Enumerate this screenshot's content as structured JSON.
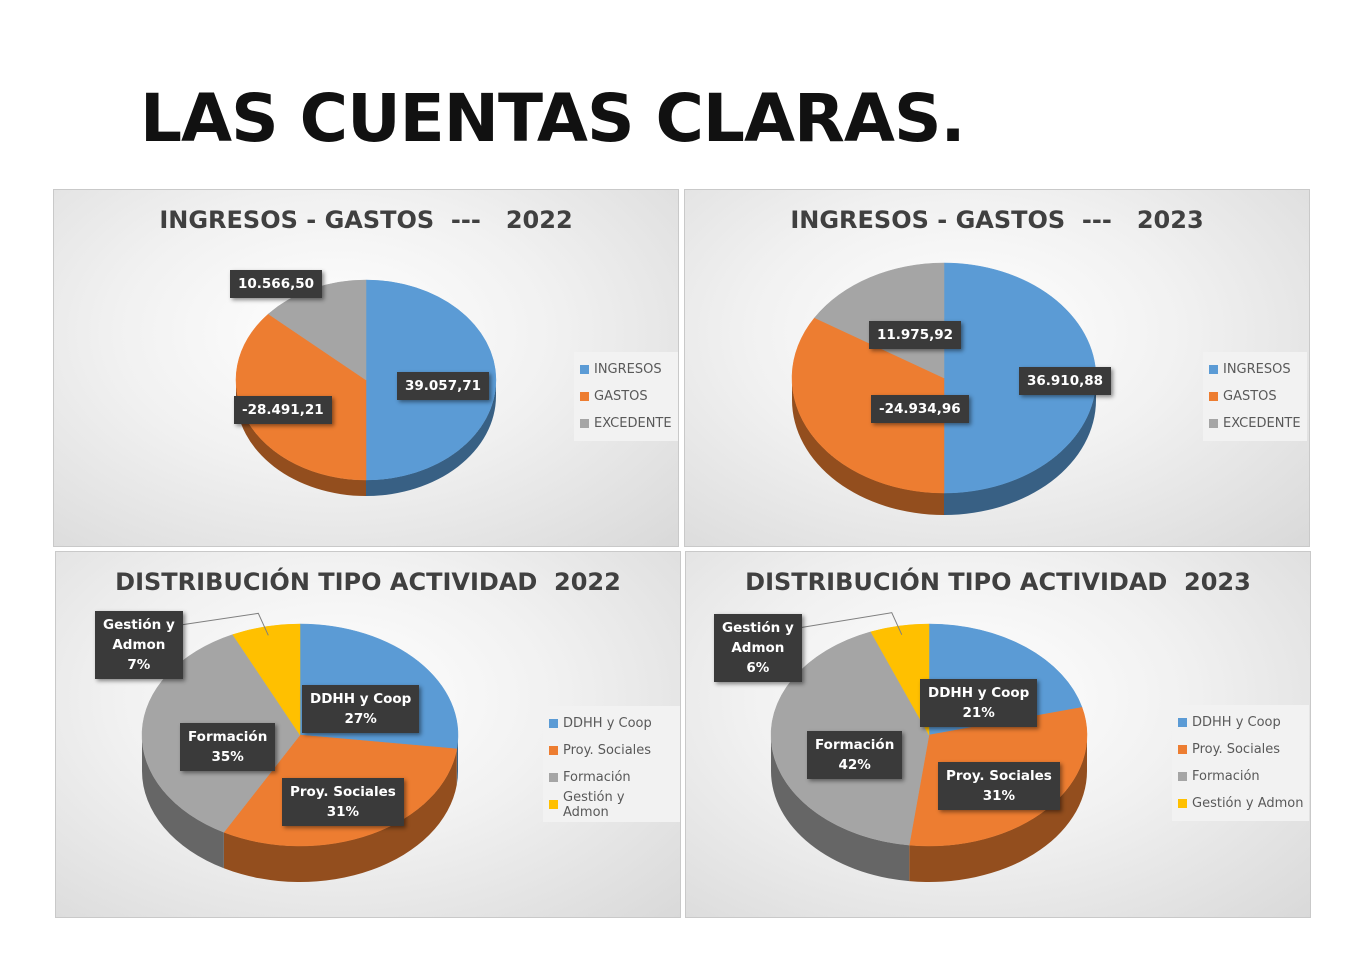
{
  "title": "LAS CUENTAS CLARAS.",
  "colors": {
    "blue": "#5b9bd5",
    "orange": "#ed7d31",
    "gray": "#a5a5a5",
    "yellow": "#ffc000"
  },
  "chart_data": [
    {
      "type": "pie",
      "title": "INGRESOS - GASTOS  ---   2022",
      "legend_position": "right",
      "categories": [
        "INGRESOS",
        "GASTOS",
        "EXCEDENTE"
      ],
      "values": [
        39057.71,
        -28491.21,
        10566.5
      ],
      "data_labels": [
        "39.057,71",
        "-28.491,21",
        "10.566,50"
      ],
      "colors": [
        "#5b9bd5",
        "#ed7d31",
        "#a5a5a5"
      ]
    },
    {
      "type": "pie",
      "title": "INGRESOS - GASTOS  ---   2023",
      "legend_position": "right",
      "categories": [
        "INGRESOS",
        "GASTOS",
        "EXCEDENTE"
      ],
      "values": [
        36910.88,
        -24934.96,
        11975.92
      ],
      "data_labels": [
        "36.910,88",
        "-24.934,96",
        "11.975,92"
      ],
      "colors": [
        "#5b9bd5",
        "#ed7d31",
        "#a5a5a5"
      ]
    },
    {
      "type": "pie",
      "title": "DISTRIBUCIÓN TIPO ACTIVIDAD  2022",
      "legend_position": "right",
      "categories": [
        "DDHH y Coop",
        "Proy. Sociales",
        "Formación",
        "Gestión y Admon"
      ],
      "values": [
        27,
        31,
        35,
        7
      ],
      "data_labels": [
        [
          "DDHH y Coop",
          "27%"
        ],
        [
          "Proy. Sociales",
          "31%"
        ],
        [
          "Formación",
          "35%"
        ],
        [
          "Gestión y",
          "Admon",
          "7%"
        ]
      ],
      "colors": [
        "#5b9bd5",
        "#ed7d31",
        "#a5a5a5",
        "#ffc000"
      ]
    },
    {
      "type": "pie",
      "title": "DISTRIBUCIÓN TIPO ACTIVIDAD  2023",
      "legend_position": "right",
      "categories": [
        "DDHH y Coop",
        "Proy. Sociales",
        "Formación",
        "Gestión y Admon"
      ],
      "values": [
        21,
        31,
        42,
        6
      ],
      "data_labels": [
        [
          "DDHH y Coop",
          "21%"
        ],
        [
          "Proy. Sociales",
          "31%"
        ],
        [
          "Formación",
          "42%"
        ],
        [
          "Gestión y",
          "Admon",
          "6%"
        ]
      ],
      "colors": [
        "#5b9bd5",
        "#ed7d31",
        "#a5a5a5",
        "#ffc000"
      ]
    }
  ]
}
